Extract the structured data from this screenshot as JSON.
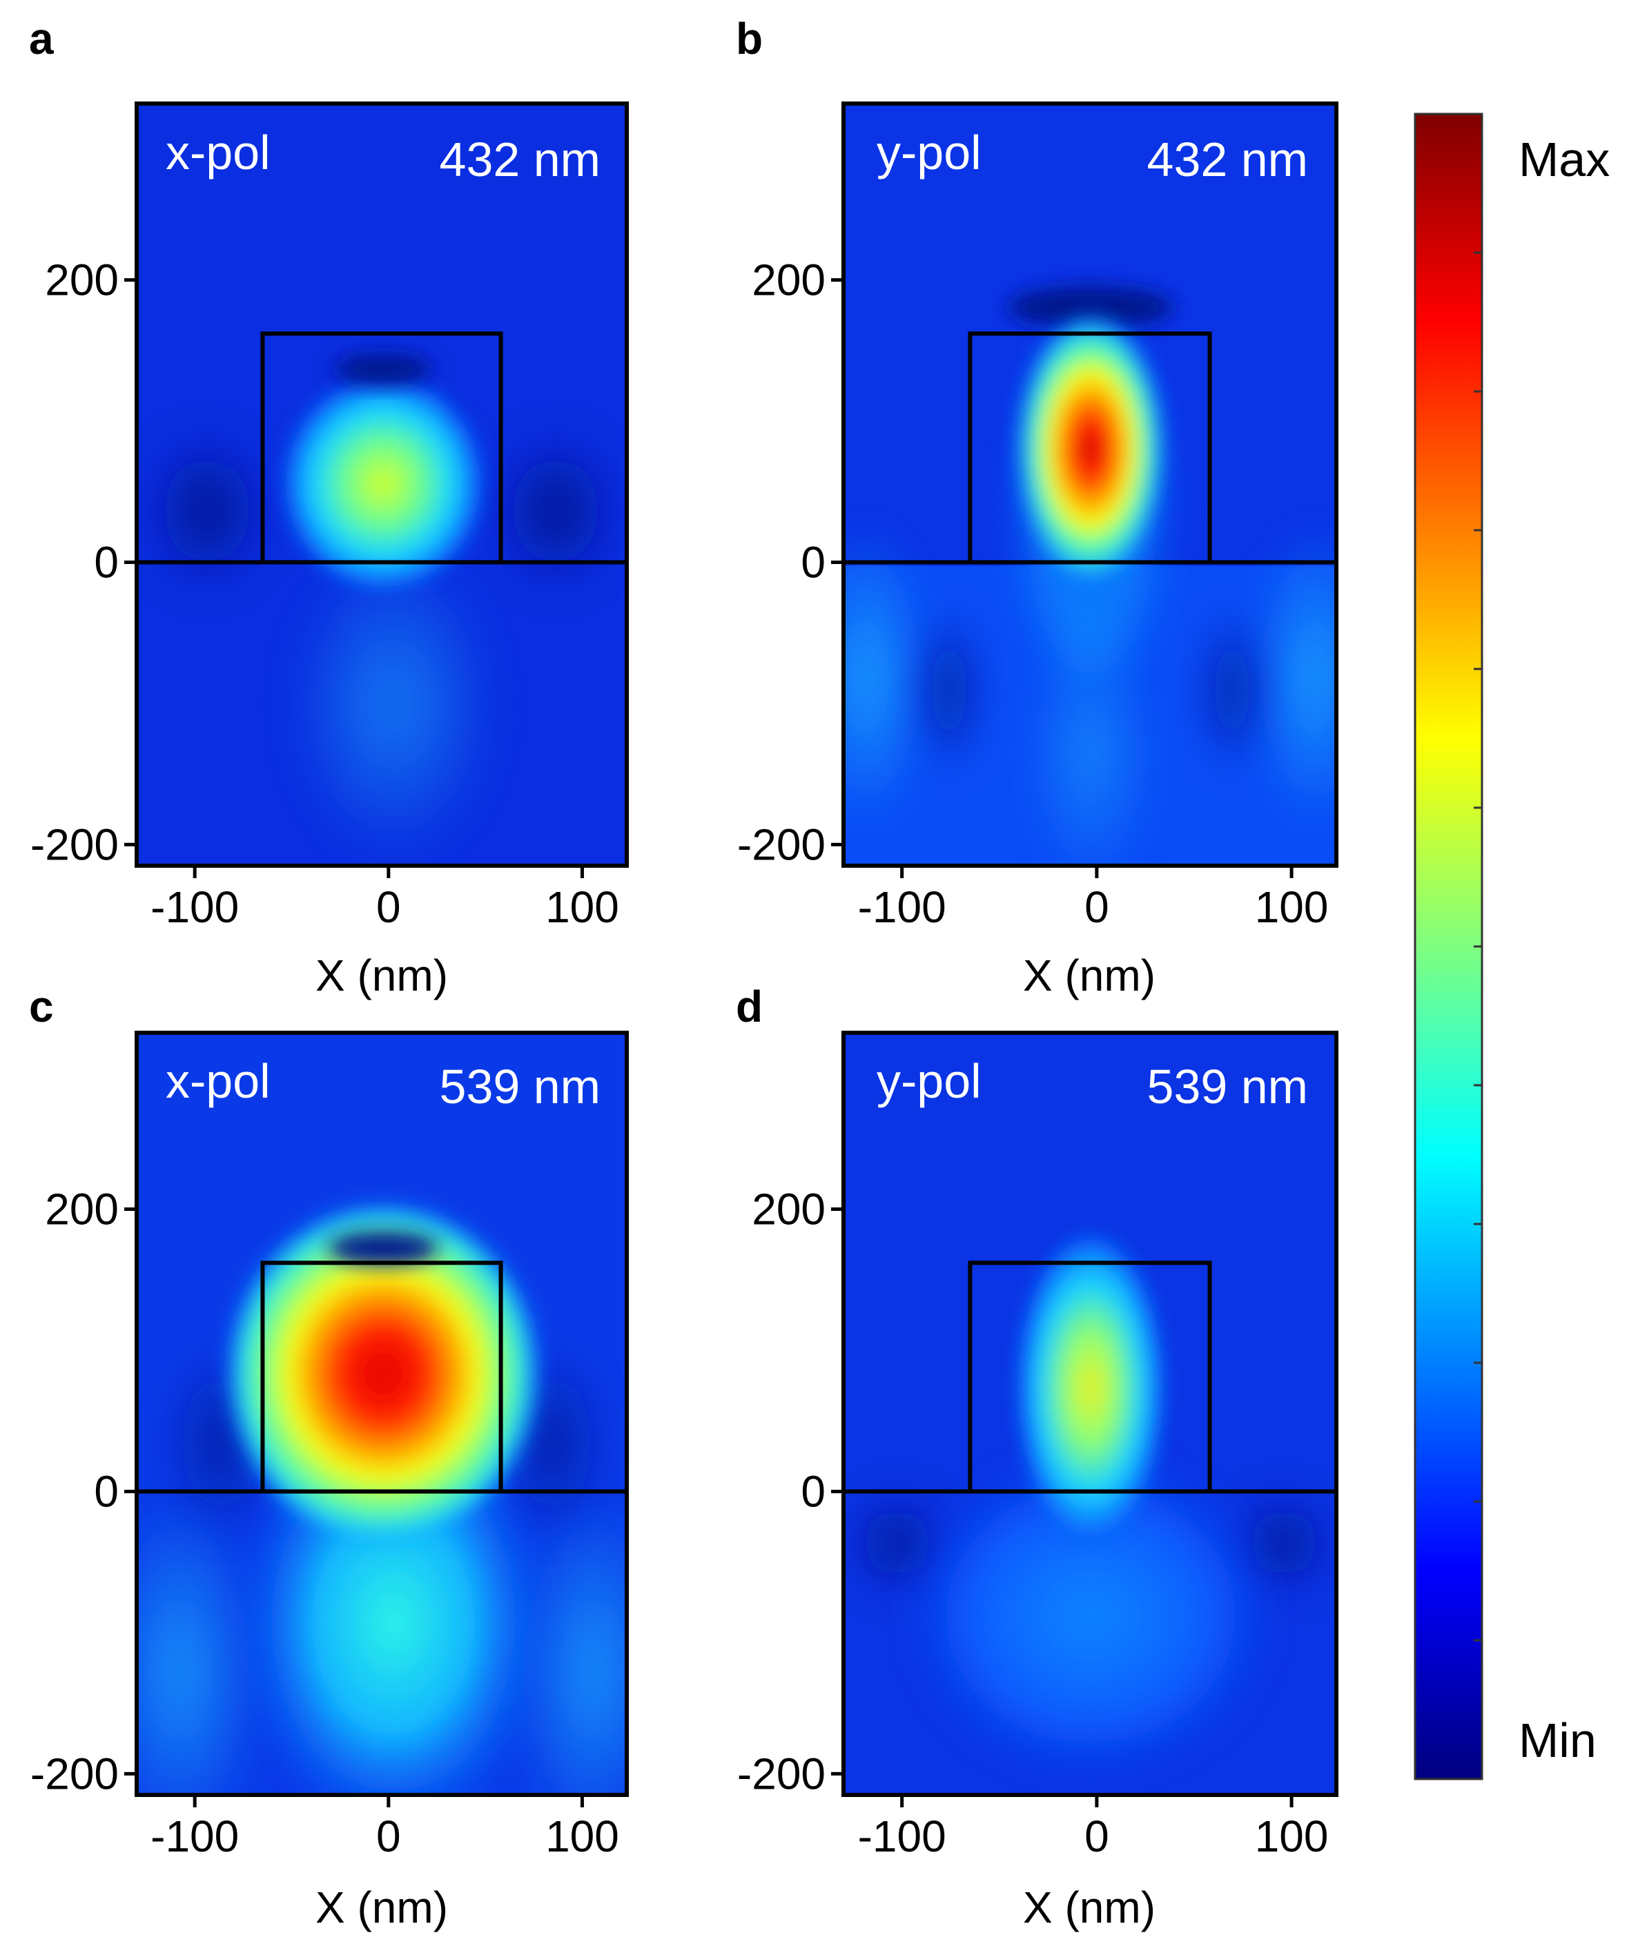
{
  "chart_data": [
    {
      "type": "heatmap",
      "panel": "a",
      "polarization_label": "x-pol",
      "wavelength_label": "432 nm",
      "xlabel": "X (nm)",
      "ylabel": "",
      "xlim": [
        -130,
        123
      ],
      "ylim": [
        -215,
        325
      ],
      "xticks": [
        -100,
        0,
        100
      ],
      "xtick_labels": [
        "-100",
        "0",
        "100"
      ],
      "yticks": [
        -200,
        0,
        200
      ],
      "ytick_labels": [
        "-200",
        "0",
        "200"
      ],
      "structure_outline": {
        "x": [
          -65,
          58
        ],
        "y": [
          0,
          162
        ]
      },
      "substrate_line_y": 0,
      "hotspot": {
        "x": -5,
        "y": 52,
        "level": 0.55
      }
    },
    {
      "type": "heatmap",
      "panel": "b",
      "polarization_label": "y-pol",
      "wavelength_label": "432 nm",
      "xlabel": "X (nm)",
      "ylabel": "",
      "xlim": [
        -130,
        123
      ],
      "ylim": [
        -215,
        325
      ],
      "xticks": [
        -100,
        0,
        100
      ],
      "xtick_labels": [
        "-100",
        "0",
        "100"
      ],
      "yticks": [
        -200,
        0,
        200
      ],
      "ytick_labels": [
        "-200",
        "0",
        "200"
      ],
      "structure_outline": {
        "x": [
          -65,
          58
        ],
        "y": [
          0,
          162
        ]
      },
      "substrate_line_y": 0,
      "hotspot": {
        "x": -8,
        "y": 82,
        "level": 0.88
      }
    },
    {
      "type": "heatmap",
      "panel": "c",
      "polarization_label": "x-pol",
      "wavelength_label": "539 nm",
      "xlabel": "X (nm)",
      "ylabel": "",
      "xlim": [
        -130,
        123
      ],
      "ylim": [
        -215,
        325
      ],
      "xticks": [
        -100,
        0,
        100
      ],
      "xtick_labels": [
        "-100",
        "0",
        "100"
      ],
      "yticks": [
        -200,
        0,
        200
      ],
      "ytick_labels": [
        "-200",
        "0",
        "200"
      ],
      "structure_outline": {
        "x": [
          -65,
          58
        ],
        "y": [
          0,
          162
        ]
      },
      "substrate_line_y": 0,
      "hotspot": {
        "x": -5,
        "y": 75,
        "level": 0.8
      }
    },
    {
      "type": "heatmap",
      "panel": "d",
      "polarization_label": "y-pol",
      "wavelength_label": "539 nm",
      "xlabel": "X (nm)",
      "ylabel": "",
      "xlim": [
        -130,
        123
      ],
      "ylim": [
        -215,
        325
      ],
      "xticks": [
        -100,
        0,
        100
      ],
      "xtick_labels": [
        "-100",
        "0",
        "100"
      ],
      "yticks": [
        -200,
        0,
        200
      ],
      "ytick_labels": [
        "-200",
        "0",
        "200"
      ],
      "structure_outline": {
        "x": [
          -65,
          58
        ],
        "y": [
          0,
          162
        ]
      },
      "substrate_line_y": 0,
      "hotspot": {
        "x": -5,
        "y": 78,
        "level": 0.58
      }
    }
  ],
  "colorbar": {
    "colormap": "jet",
    "max_label": "Max",
    "min_label": "Min",
    "colors": [
      "#00007f",
      "#0000ff",
      "#007fff",
      "#00ffff",
      "#7fff7f",
      "#ffff00",
      "#ff7f00",
      "#ff0000",
      "#7f0000"
    ]
  },
  "panels": [
    {
      "letter": "a"
    },
    {
      "letter": "b"
    },
    {
      "letter": "c"
    },
    {
      "letter": "d"
    }
  ]
}
